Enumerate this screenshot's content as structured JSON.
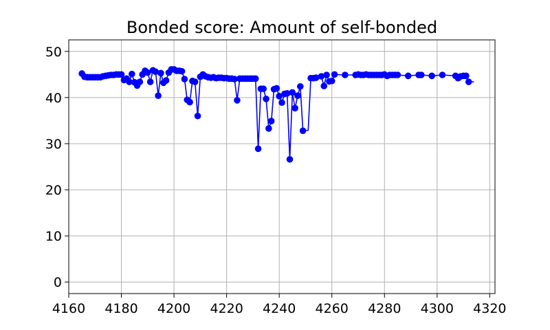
{
  "chart_data": {
    "type": "line",
    "title": "Bonded score: Amount of self-bonded",
    "xlabel": "",
    "ylabel": "",
    "xlim": [
      4160,
      4322
    ],
    "ylim": [
      -2.5,
      52.5
    ],
    "xticks": [
      4160,
      4180,
      4200,
      4220,
      4240,
      4260,
      4280,
      4300,
      4320
    ],
    "yticks": [
      0,
      10,
      20,
      30,
      40,
      50
    ],
    "grid": true,
    "colors": {
      "series": "#0000ff",
      "grid": "#b0b0b0",
      "axes": "#000000"
    },
    "series": [
      {
        "marker": "circle",
        "points": [
          [
            4165,
            45.2
          ],
          [
            4166,
            44.5
          ],
          [
            4167,
            44.4
          ],
          [
            4168,
            44.4
          ],
          [
            4169,
            44.4
          ],
          [
            4170,
            44.4
          ],
          [
            4171,
            44.4
          ],
          [
            4172,
            44.4
          ],
          [
            4173,
            44.6
          ],
          [
            4174,
            44.7
          ],
          [
            4175,
            44.8
          ],
          [
            4176,
            44.9
          ],
          [
            4177,
            44.9
          ],
          [
            4178,
            45.0
          ],
          [
            4179,
            45.0
          ],
          [
            4180,
            45.0
          ],
          [
            4181,
            43.8
          ],
          [
            4182,
            44.1
          ],
          [
            4183,
            43.4
          ],
          [
            4184,
            45.1
          ],
          [
            4185,
            43.3
          ],
          [
            4186,
            42.6
          ],
          [
            4187,
            43.4
          ],
          [
            4188,
            45.0
          ],
          [
            4189,
            45.8
          ],
          [
            4190,
            45.4
          ],
          [
            4191,
            43.4
          ],
          [
            4192,
            45.9
          ],
          [
            4193,
            45.6
          ],
          [
            4194,
            40.4
          ],
          [
            4195,
            45.3
          ],
          [
            4196,
            43.2
          ],
          [
            4197,
            43.7
          ],
          [
            4198,
            45.4
          ],
          [
            4199,
            46.1
          ],
          [
            4200,
            46.1
          ],
          [
            4201,
            45.8
          ],
          [
            4202,
            45.8
          ],
          [
            4203,
            45.7
          ],
          [
            4204,
            44.0
          ],
          [
            4205,
            39.5
          ],
          [
            4206,
            39.0
          ],
          [
            4207,
            43.6
          ],
          [
            4208,
            43.4
          ],
          [
            4209,
            36.0
          ],
          [
            4210,
            44.5
          ],
          [
            4211,
            45.0
          ],
          [
            4212,
            44.6
          ],
          [
            4213,
            44.4
          ],
          [
            4214,
            44.3
          ],
          [
            4215,
            44.4
          ],
          [
            4216,
            44.2
          ],
          [
            4217,
            44.3
          ],
          [
            4218,
            44.3
          ],
          [
            4219,
            44.2
          ],
          [
            4220,
            44.2
          ],
          [
            4221,
            44.1
          ],
          [
            4222,
            44.1
          ],
          [
            4223,
            44.0
          ],
          [
            4224,
            39.4
          ],
          [
            4225,
            44.1
          ],
          [
            4226,
            44.1
          ],
          [
            4227,
            44.1
          ],
          [
            4228,
            44.1
          ],
          [
            4229,
            44.1
          ],
          [
            4230,
            44.1
          ],
          [
            4231,
            44.1
          ],
          [
            4232,
            28.9
          ],
          [
            4233,
            41.9
          ],
          [
            4234,
            41.9
          ],
          [
            4235,
            39.7
          ],
          [
            4236,
            33.3
          ],
          [
            4237,
            34.9
          ],
          [
            4238,
            41.8
          ],
          [
            4239,
            42.0
          ],
          [
            4240,
            40.3
          ],
          [
            4241,
            38.9
          ],
          [
            4242,
            40.8
          ],
          [
            4243,
            40.9
          ],
          [
            4244,
            26.6
          ],
          [
            4245,
            41.1
          ],
          [
            4246,
            37.7
          ],
          [
            4247,
            40.4
          ],
          [
            4248,
            42.4
          ],
          [
            4249,
            32.8
          ],
          [
            4251,
            32.9
          ],
          [
            4252,
            44.2
          ],
          [
            4253,
            44.2
          ],
          [
            4254,
            44.3
          ],
          [
            4256,
            44.6
          ],
          [
            4257,
            42.5
          ],
          [
            4258,
            44.9
          ],
          [
            4259,
            43.5
          ],
          [
            4260,
            43.6
          ],
          [
            4261,
            45.0
          ],
          [
            4265,
            44.9
          ],
          [
            4269,
            44.9
          ],
          [
            4270,
            45.0
          ],
          [
            4271,
            44.9
          ],
          [
            4272,
            44.9
          ],
          [
            4273,
            45.0
          ],
          [
            4274,
            44.9
          ],
          [
            4275,
            44.9
          ],
          [
            4276,
            44.9
          ],
          [
            4277,
            44.9
          ],
          [
            4278,
            44.9
          ],
          [
            4279,
            44.9
          ],
          [
            4280,
            45.0
          ],
          [
            4281,
            44.7
          ],
          [
            4282,
            44.9
          ],
          [
            4283,
            44.9
          ],
          [
            4284,
            44.9
          ],
          [
            4285,
            44.9
          ],
          [
            4289,
            44.7
          ],
          [
            4293,
            44.9
          ],
          [
            4294,
            44.9
          ],
          [
            4298,
            44.7
          ],
          [
            4302,
            44.9
          ],
          [
            4307,
            44.7
          ],
          [
            4308,
            44.2
          ],
          [
            4309,
            44.6
          ],
          [
            4310,
            44.7
          ],
          [
            4311,
            44.7
          ],
          [
            4312,
            43.4
          ],
          [
            4314,
            43.4
          ]
        ],
        "no_marker_x": [
          4251,
          4314
        ]
      }
    ]
  }
}
